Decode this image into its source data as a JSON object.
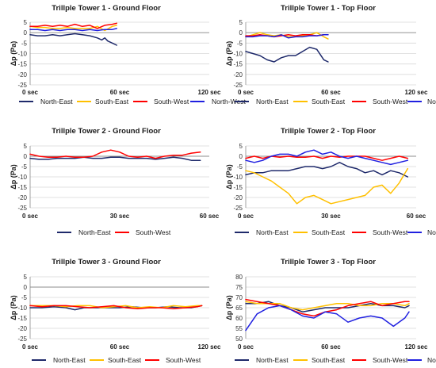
{
  "chart_data": [
    {
      "type": "line",
      "title": "Trillple Tower 1 - Ground Floor",
      "ylabel": "Δp (Pa)",
      "ylim": [
        -25,
        5
      ],
      "yticks": [
        5,
        0,
        -5,
        -10,
        -15,
        -20,
        -25
      ],
      "xlim": [
        0,
        120
      ],
      "xtick_labels": [
        {
          "x": 0,
          "label": "0 sec"
        },
        {
          "x": 60,
          "label": "60 sec"
        },
        {
          "x": 120,
          "label": "120 sec"
        }
      ],
      "legend": "bottom",
      "grid": true,
      "series": [
        {
          "name": "North-East",
          "color": "#1f2a6b",
          "x": [
            0,
            5,
            10,
            15,
            20,
            25,
            30,
            35,
            40,
            45,
            48,
            50,
            52,
            55,
            58
          ],
          "y": [
            -1,
            -1.5,
            -1.5,
            -1,
            -1.5,
            -1,
            -0.5,
            -1,
            -1.5,
            -2.5,
            -3.5,
            -2.5,
            -4,
            -5,
            -6
          ]
        },
        {
          "name": "South-East",
          "color": "#ffc000",
          "x": [
            0,
            5,
            10,
            15,
            20,
            25,
            30,
            35,
            40,
            45,
            50,
            55,
            58
          ],
          "y": [
            3,
            2.5,
            2.5,
            2,
            2,
            2.5,
            2,
            2,
            2,
            3,
            1,
            3,
            3.5
          ]
        },
        {
          "name": "South-West",
          "color": "#ff0000",
          "x": [
            0,
            5,
            10,
            15,
            20,
            25,
            30,
            35,
            40,
            45,
            50,
            55,
            58
          ],
          "y": [
            3,
            3,
            3.5,
            3,
            3.5,
            3,
            4,
            3,
            3.5,
            2,
            3.5,
            4,
            4.5
          ]
        },
        {
          "name": "North-West",
          "color": "#2020e0",
          "x": [
            0,
            5,
            10,
            15,
            20,
            25,
            30,
            35,
            40,
            45,
            50,
            55,
            58
          ],
          "y": [
            1.5,
            1.5,
            1,
            1.5,
            1,
            1.5,
            1.5,
            1,
            1.5,
            1,
            1.5,
            1.5,
            2
          ]
        }
      ]
    },
    {
      "type": "line",
      "title": "Trillple Tower 1 - Top Floor",
      "ylabel": "Δp (Pa)",
      "ylim": [
        -25,
        5
      ],
      "yticks": [
        5,
        0,
        -5,
        -10,
        -15,
        -20,
        -25
      ],
      "xlim": [
        0,
        120
      ],
      "xtick_labels": [
        {
          "x": 0,
          "label": "0 sec"
        },
        {
          "x": 60,
          "label": "60 sec"
        },
        {
          "x": 120,
          "label": "120 sec"
        }
      ],
      "legend": "bottom",
      "grid": true,
      "series": [
        {
          "name": "North-East",
          "color": "#1f2a6b",
          "x": [
            0,
            5,
            10,
            15,
            20,
            25,
            30,
            35,
            40,
            45,
            50,
            55,
            58
          ],
          "y": [
            -9,
            -10,
            -11,
            -13,
            -14,
            -12,
            -11,
            -11,
            -9,
            -7,
            -8,
            -13,
            -14
          ]
        },
        {
          "name": "South-East",
          "color": "#ffc000",
          "x": [
            0,
            5,
            10,
            15,
            20,
            25,
            30,
            35,
            40,
            45,
            50,
            55,
            58
          ],
          "y": [
            -2,
            -1,
            0,
            -1,
            -1.5,
            -1,
            -2,
            -2,
            -1.5,
            -1,
            0,
            -2,
            -3
          ]
        },
        {
          "name": "South-West",
          "color": "#ff0000",
          "x": [
            0,
            5,
            10,
            15,
            20,
            25,
            30,
            35,
            40,
            45,
            50,
            55,
            58
          ],
          "y": [
            -1.5,
            -1.5,
            -1,
            -1.5,
            -2,
            -1.5,
            -1,
            -1.5,
            -1,
            -1,
            -1.5,
            -1,
            -1
          ]
        },
        {
          "name": "North-West",
          "color": "#2020e0",
          "x": [
            0,
            5,
            10,
            15,
            20,
            25,
            30,
            35,
            40,
            45,
            50,
            55,
            58
          ],
          "y": [
            -2,
            -2,
            -1.5,
            -1.5,
            -2,
            -1,
            -2.5,
            -2,
            -2,
            -1.5,
            -1.5,
            -1,
            -1
          ]
        }
      ]
    },
    {
      "type": "line",
      "title": "Trillple Tower 2 - Ground Floor",
      "ylabel": "Δp (Pa)",
      "ylim": [
        -25,
        5
      ],
      "yticks": [
        5,
        0,
        -5,
        -10,
        -15,
        -20,
        -25
      ],
      "xlim": [
        0,
        60
      ],
      "xtick_labels": [
        {
          "x": 0,
          "label": "0 sec"
        },
        {
          "x": 30,
          "label": "30 sec"
        },
        {
          "x": 60,
          "label": "60 sec"
        }
      ],
      "legend": "bottom",
      "grid": true,
      "series": [
        {
          "name": "North-East",
          "color": "#1f2a6b",
          "x": [
            0,
            3,
            6,
            9,
            12,
            15,
            18,
            21,
            24,
            27,
            30,
            33,
            36,
            39,
            42,
            45,
            48,
            51,
            54,
            57
          ],
          "y": [
            -1,
            -1.5,
            -1.5,
            -1,
            -1,
            -1,
            -0.5,
            -1,
            -1,
            -0.5,
            -0.5,
            -1,
            -1,
            -1,
            -1.5,
            -1,
            -0.5,
            -1,
            -2,
            -2
          ]
        },
        {
          "name": "South-West",
          "color": "#ff0000",
          "x": [
            0,
            3,
            6,
            9,
            12,
            15,
            18,
            21,
            24,
            27,
            30,
            33,
            36,
            39,
            42,
            45,
            48,
            51,
            54,
            57
          ],
          "y": [
            1,
            0,
            -0.5,
            -0.5,
            0,
            -0.5,
            -0.5,
            0,
            2,
            3,
            2,
            0,
            -0.5,
            0,
            -1,
            0,
            0.5,
            0.5,
            1.5,
            2
          ]
        }
      ]
    },
    {
      "type": "line",
      "title": "Trillple Tower 2 - Top Floor",
      "ylabel": "Δp (Pa)",
      "ylim": [
        -25,
        5
      ],
      "yticks": [
        5,
        0,
        -5,
        -10,
        -15,
        -20,
        -25
      ],
      "xlim": [
        0,
        60
      ],
      "xtick_labels": [
        {
          "x": 0,
          "label": "0 sec"
        },
        {
          "x": 30,
          "label": "30 sec"
        },
        {
          "x": 60,
          "label": "60 sec"
        }
      ],
      "legend": "bottom",
      "grid": true,
      "series": [
        {
          "name": "North-East",
          "color": "#1f2a6b",
          "x": [
            0,
            3,
            6,
            9,
            12,
            15,
            18,
            21,
            24,
            27,
            30,
            33,
            36,
            39,
            42,
            45,
            48,
            51,
            54,
            57
          ],
          "y": [
            -9,
            -8,
            -8,
            -7,
            -7,
            -7,
            -6,
            -5,
            -5,
            -6,
            -5,
            -3,
            -5,
            -6,
            -8,
            -7,
            -9,
            -7,
            -8,
            -10
          ]
        },
        {
          "name": "South-East",
          "color": "#ffc000",
          "x": [
            0,
            3,
            6,
            9,
            12,
            15,
            18,
            21,
            24,
            27,
            30,
            33,
            36,
            39,
            42,
            45,
            48,
            51,
            54,
            57
          ],
          "y": [
            -7,
            -8,
            -10,
            -12,
            -15,
            -18,
            -23,
            -20,
            -19,
            -21,
            -23,
            -22,
            -21,
            -20,
            -19,
            -15,
            -14,
            -18,
            -13,
            -6
          ]
        },
        {
          "name": "South-West",
          "color": "#ff0000",
          "x": [
            0,
            3,
            6,
            9,
            12,
            15,
            18,
            21,
            24,
            27,
            30,
            33,
            36,
            39,
            42,
            45,
            48,
            51,
            54,
            57
          ],
          "y": [
            -1,
            0,
            -1,
            0,
            -0.5,
            0,
            -0.5,
            -0.5,
            0,
            -1,
            0,
            -0.5,
            0,
            0,
            0,
            -1,
            -2,
            -1,
            0,
            -1
          ]
        },
        {
          "name": "North-West",
          "color": "#2020e0",
          "x": [
            0,
            3,
            6,
            9,
            12,
            15,
            18,
            21,
            24,
            27,
            30,
            33,
            36,
            39,
            42,
            45,
            48,
            51,
            54,
            57
          ],
          "y": [
            -2,
            -3,
            -2,
            0,
            1,
            1,
            0,
            2,
            3,
            1,
            2,
            0,
            -1,
            0,
            -1,
            -2,
            -3,
            -4,
            -3,
            -2
          ]
        }
      ]
    },
    {
      "type": "line",
      "title": "Trillple Tower 3 - Ground Floor",
      "ylabel": "Δp (Pa)",
      "ylim": [
        -25,
        5
      ],
      "yticks": [
        5,
        0,
        -5,
        -10,
        -15,
        -20,
        -25
      ],
      "xlim": [
        0,
        120
      ],
      "xtick_labels": [
        {
          "x": 0,
          "label": "0 sec"
        },
        {
          "x": 60,
          "label": "60 sec"
        },
        {
          "x": 120,
          "label": "120 sec"
        }
      ],
      "legend": "bottom",
      "grid": true,
      "series": [
        {
          "name": "North-East",
          "color": "#1f2a6b",
          "x": [
            0,
            8,
            16,
            24,
            30,
            36,
            44,
            52,
            60,
            68,
            76,
            84,
            92,
            100,
            108,
            115
          ],
          "y": [
            -10,
            -10,
            -9.5,
            -10,
            -11,
            -10,
            -10,
            -10,
            -10,
            -9.5,
            -10,
            -10,
            -9.5,
            -10,
            -10,
            -9
          ]
        },
        {
          "name": "South-East",
          "color": "#ffc000",
          "x": [
            0,
            8,
            16,
            24,
            32,
            40,
            48,
            56,
            64,
            72,
            80,
            88,
            96,
            104,
            112,
            115
          ],
          "y": [
            -9,
            -9,
            -9,
            -9.5,
            -9,
            -9,
            -10,
            -9.5,
            -9,
            -10,
            -9.5,
            -10,
            -9,
            -9.5,
            -9,
            -9
          ]
        },
        {
          "name": "South-West",
          "color": "#ff0000",
          "x": [
            0,
            8,
            16,
            24,
            32,
            40,
            48,
            56,
            64,
            72,
            80,
            88,
            96,
            104,
            112,
            115
          ],
          "y": [
            -9,
            -9.5,
            -9,
            -9,
            -9.5,
            -10,
            -9.5,
            -9,
            -10,
            -10.5,
            -10,
            -10,
            -10.5,
            -10,
            -9.5,
            -9
          ]
        }
      ]
    },
    {
      "type": "line",
      "title": "Trillple Tower 3 - Top Floor",
      "ylabel": "Δp (Pa)",
      "ylim": [
        50,
        80
      ],
      "yticks": [
        80,
        75,
        70,
        65,
        60,
        55,
        50
      ],
      "xlim": [
        0,
        120
      ],
      "xtick_labels": [
        {
          "x": 0,
          "label": "0 sec"
        },
        {
          "x": 60,
          "label": "60 sec"
        },
        {
          "x": 120,
          "label": "120 sec"
        }
      ],
      "legend": "bottom",
      "grid": true,
      "series": [
        {
          "name": "North-East",
          "color": "#1f2a6b",
          "x": [
            0,
            8,
            16,
            24,
            32,
            40,
            48,
            56,
            64,
            72,
            80,
            88,
            96,
            104,
            112,
            115
          ],
          "y": [
            67,
            67,
            68,
            66,
            65,
            63,
            64,
            65,
            65,
            65,
            66,
            67,
            66,
            66,
            65,
            66
          ]
        },
        {
          "name": "South-East",
          "color": "#ffc000",
          "x": [
            0,
            8,
            16,
            24,
            32,
            40,
            48,
            56,
            64,
            72,
            80,
            88,
            96,
            104,
            112,
            115
          ],
          "y": [
            68,
            67,
            67,
            67,
            65,
            64,
            65,
            66,
            67,
            67,
            66,
            66,
            67,
            67,
            66,
            67
          ]
        },
        {
          "name": "South-West",
          "color": "#ff0000",
          "x": [
            0,
            8,
            16,
            24,
            32,
            40,
            48,
            56,
            64,
            72,
            80,
            88,
            96,
            104,
            112,
            115
          ],
          "y": [
            69,
            68,
            67,
            66,
            64,
            62,
            61,
            63,
            64,
            66,
            67,
            68,
            66,
            67,
            68,
            68
          ]
        },
        {
          "name": "North-West",
          "color": "#2020e0",
          "x": [
            0,
            8,
            16,
            24,
            32,
            40,
            48,
            56,
            64,
            72,
            80,
            88,
            96,
            104,
            112,
            115
          ],
          "y": [
            54,
            62,
            65,
            66,
            64,
            61,
            60,
            63,
            62,
            58,
            60,
            61,
            60,
            56,
            60,
            63
          ]
        }
      ]
    }
  ]
}
